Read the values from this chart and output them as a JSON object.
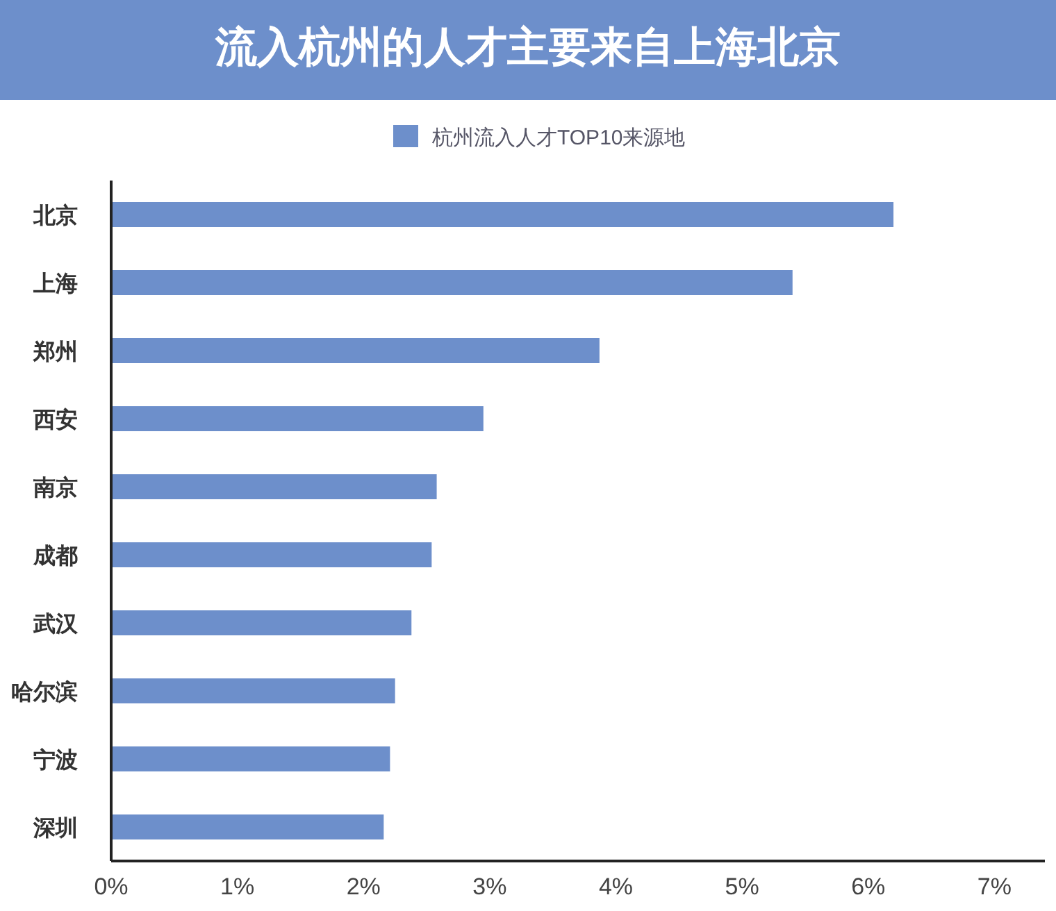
{
  "chart_data": {
    "type": "bar",
    "orientation": "horizontal",
    "title": "流入杭州的人才主要来自上海北京",
    "categories": [
      "北京",
      "上海",
      "郑州",
      "西安",
      "南京",
      "成都",
      "武汉",
      "哈尔滨",
      "宁波",
      "深圳"
    ],
    "series": [
      {
        "name": "杭州流入人才TOP10来源地",
        "color": "#6d8fcb",
        "values": [
          6.2,
          5.4,
          3.87,
          2.95,
          2.58,
          2.54,
          2.38,
          2.25,
          2.21,
          2.16
        ]
      }
    ],
    "xlim": [
      0,
      7.4
    ],
    "xticks": [
      {
        "value": 0,
        "label": "0%"
      },
      {
        "value": 1,
        "label": "1%"
      },
      {
        "value": 2,
        "label": "2%"
      },
      {
        "value": 3,
        "label": "3%"
      },
      {
        "value": 4,
        "label": "4%"
      },
      {
        "value": 5,
        "label": "5%"
      },
      {
        "value": 6,
        "label": "6%"
      },
      {
        "value": 7,
        "label": "7%"
      }
    ],
    "grid": false,
    "legend": "top"
  }
}
